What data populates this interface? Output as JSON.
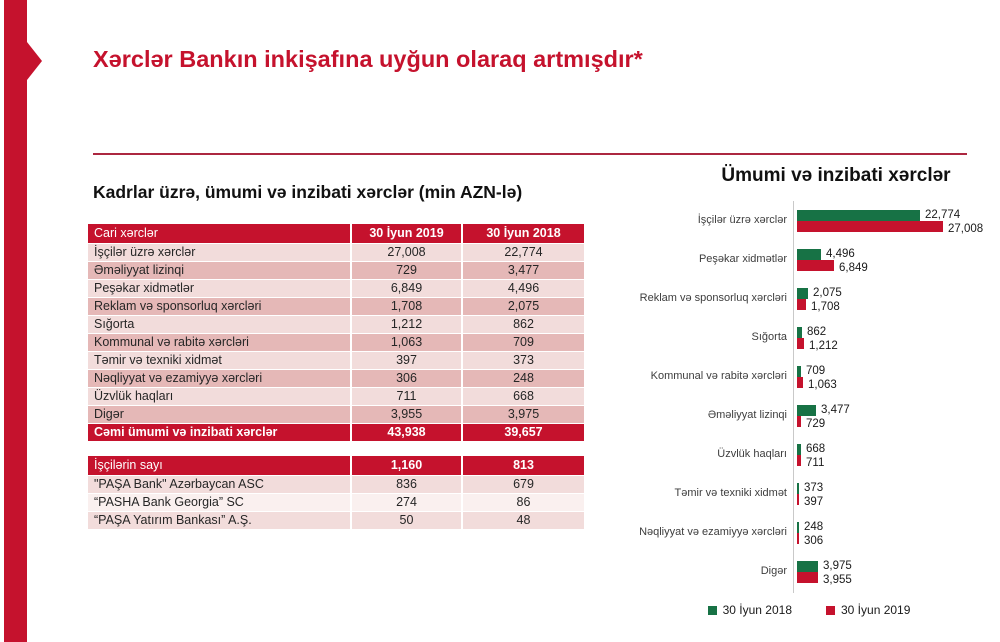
{
  "slide": {
    "title": "Xərclər Bankın inkişafına uyğun olaraq artmışdır*",
    "colors": {
      "red": "#C5122D",
      "divider_red": "#AC2740",
      "green": "#177245",
      "band_light": "#F2DCDB",
      "band_dark": "#E5B8B7",
      "band_pale": "#FAF0EF",
      "axis_gray": "#C9C9C9"
    }
  },
  "left_panel": {
    "section_title": "Kadrlar üzrə, ümumi və inzibati xərclər (min AZN-lə)",
    "expenses_table": {
      "columns": [
        "Cari xərclər",
        "30 İyun 2019",
        "30 İyun 2018"
      ],
      "rows": [
        {
          "label": "İşçilər üzrə xərclər",
          "y2019": "27,008",
          "y2018": "22,774"
        },
        {
          "label": "Əməliyyat lizinqi",
          "y2019": "729",
          "y2018": "3,477"
        },
        {
          "label": "Peşəkar xidmətlər",
          "y2019": "6,849",
          "y2018": "4,496"
        },
        {
          "label": "Reklam və sponsorluq xərcləri",
          "y2019": "1,708",
          "y2018": "2,075"
        },
        {
          "label": "Sığorta",
          "y2019": "1,212",
          "y2018": "862"
        },
        {
          "label": "Kommunal və rabitə xərcləri",
          "y2019": "1,063",
          "y2018": "709"
        },
        {
          "label": "Təmir və texniki xidmət",
          "y2019": "397",
          "y2018": "373"
        },
        {
          "label": "Nəqliyyat və ezamiyyə xərcləri",
          "y2019": "306",
          "y2018": "248"
        },
        {
          "label": "Üzvlük haqları",
          "y2019": "711",
          "y2018": "668"
        },
        {
          "label": "Digər",
          "y2019": "3,955",
          "y2018": "3,975"
        }
      ],
      "total": {
        "label": "Cəmi ümumi və inzibati xərclər",
        "y2019": "43,938",
        "y2018": "39,657"
      }
    },
    "headcount_table": {
      "header": {
        "label": "İşçilərin sayı",
        "y2019": "1,160",
        "y2018": "813"
      },
      "rows": [
        {
          "label": "\"PAŞA Bank\" Azərbaycan  ASC",
          "y2019": "836",
          "y2018": "679"
        },
        {
          "label": "“PASHA Bank Georgia” SC",
          "y2019": "274",
          "y2018": "86"
        },
        {
          "label": "“PAŞA Yatırım Bankası” A.Ş.",
          "y2019": "50",
          "y2018": "48"
        }
      ]
    }
  },
  "chart_data": {
    "type": "bar",
    "orientation": "horizontal",
    "title": "Ümumi və inzibati xərclər",
    "categories": [
      "İşçilər üzrə xərclər",
      "Peşəkar xidmətlər",
      "Reklam və sponsorluq xərcləri",
      "Sığorta",
      "Kommunal və rabitə xərcləri",
      "Əməliyyat lizinqi",
      "Üzvlük haqları",
      "Təmir və texniki xidmət",
      "Nəqliyyat və ezamiyyə xərcləri",
      "Digər"
    ],
    "series": [
      {
        "name": "30 İyun 2018",
        "color": "#177245",
        "values": [
          22774,
          4496,
          2075,
          862,
          709,
          3477,
          668,
          373,
          248,
          3975
        ]
      },
      {
        "name": "30 İyun 2019",
        "color": "#C5122D",
        "values": [
          27008,
          6849,
          1708,
          1212,
          1063,
          729,
          711,
          397,
          306,
          3955
        ]
      }
    ],
    "xlim": [
      0,
      27008
    ],
    "value_labels": true,
    "gridlines": false,
    "legend_position": "bottom"
  }
}
